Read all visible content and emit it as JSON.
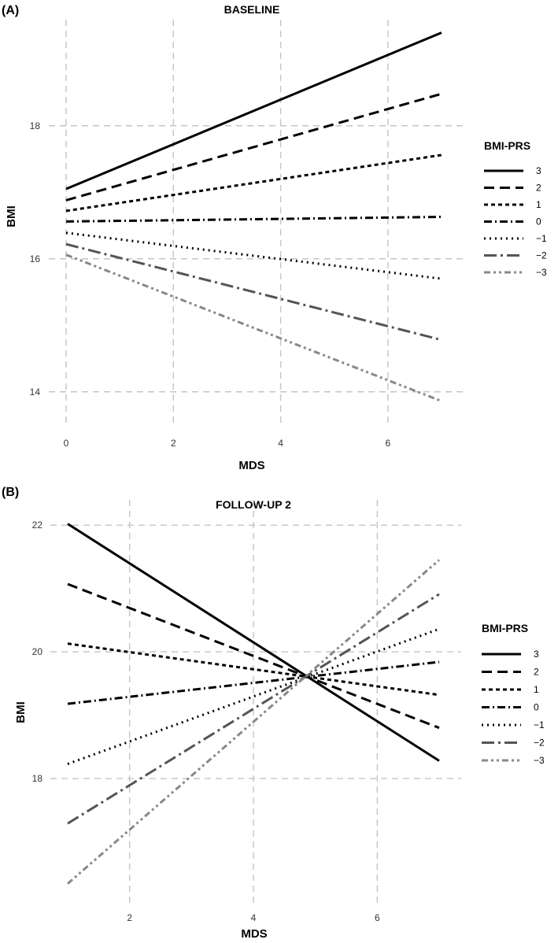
{
  "chart_data": [
    {
      "panel_label": "(A)",
      "type": "line",
      "title": "BASELINE",
      "xlabel": "MDS",
      "ylabel": "BMI",
      "xlim": [
        0,
        7
      ],
      "ylim": [
        13.5,
        19.5
      ],
      "xticks": [
        "0",
        "2",
        "4",
        "6"
      ],
      "yticks": [
        "14",
        "16",
        "18"
      ],
      "grid": true,
      "legend": {
        "title": "BMI-PRS",
        "position": "right"
      },
      "series": [
        {
          "name": "3",
          "x": [
            0,
            7
          ],
          "y": [
            17.05,
            19.4
          ],
          "color": "#000000",
          "dash": "solid"
        },
        {
          "name": "2",
          "x": [
            0,
            7
          ],
          "y": [
            16.88,
            18.48
          ],
          "color": "#000000",
          "dash": "longdash"
        },
        {
          "name": "1",
          "x": [
            0,
            7
          ],
          "y": [
            16.72,
            17.56
          ],
          "color": "#000000",
          "dash": "shortdash"
        },
        {
          "name": "0",
          "x": [
            0,
            7
          ],
          "y": [
            16.56,
            16.63
          ],
          "color": "#000000",
          "dash": "dashdot"
        },
        {
          "name": "−1",
          "x": [
            0,
            7
          ],
          "y": [
            16.39,
            15.7
          ],
          "color": "#000000",
          "dash": "dotted"
        },
        {
          "name": "−2",
          "x": [
            0,
            7
          ],
          "y": [
            16.22,
            14.78
          ],
          "color": "#555555",
          "dash": "longdashdot"
        },
        {
          "name": "−3",
          "x": [
            0,
            7
          ],
          "y": [
            16.06,
            13.86
          ],
          "color": "#888888",
          "dash": "twodash"
        }
      ]
    },
    {
      "panel_label": "(B)",
      "type": "line",
      "title": "FOLLOW-UP 2",
      "xlabel": "MDS",
      "ylabel": "BMI",
      "xlim": [
        1,
        7
      ],
      "ylim": [
        16,
        22.3
      ],
      "xticks": [
        "2",
        "4",
        "6"
      ],
      "yticks": [
        "18",
        "20",
        "22"
      ],
      "grid": true,
      "legend": {
        "title": "BMI-PRS",
        "position": "right"
      },
      "series": [
        {
          "name": "3",
          "x": [
            1,
            7
          ],
          "y": [
            22.02,
            18.28
          ],
          "color": "#000000",
          "dash": "solid"
        },
        {
          "name": "2",
          "x": [
            1,
            7
          ],
          "y": [
            21.07,
            18.8
          ],
          "color": "#000000",
          "dash": "longdash"
        },
        {
          "name": "1",
          "x": [
            1,
            7
          ],
          "y": [
            20.13,
            19.32
          ],
          "color": "#000000",
          "dash": "shortdash"
        },
        {
          "name": "0",
          "x": [
            1,
            7
          ],
          "y": [
            19.18,
            19.84
          ],
          "color": "#000000",
          "dash": "dashdot"
        },
        {
          "name": "−1",
          "x": [
            1,
            7
          ],
          "y": [
            18.23,
            20.36
          ],
          "color": "#000000",
          "dash": "dotted"
        },
        {
          "name": "−2",
          "x": [
            1,
            7
          ],
          "y": [
            17.29,
            20.91
          ],
          "color": "#555555",
          "dash": "longdashdot"
        },
        {
          "name": "−3",
          "x": [
            1,
            7
          ],
          "y": [
            16.34,
            21.45
          ],
          "color": "#888888",
          "dash": "twodash"
        }
      ]
    }
  ]
}
